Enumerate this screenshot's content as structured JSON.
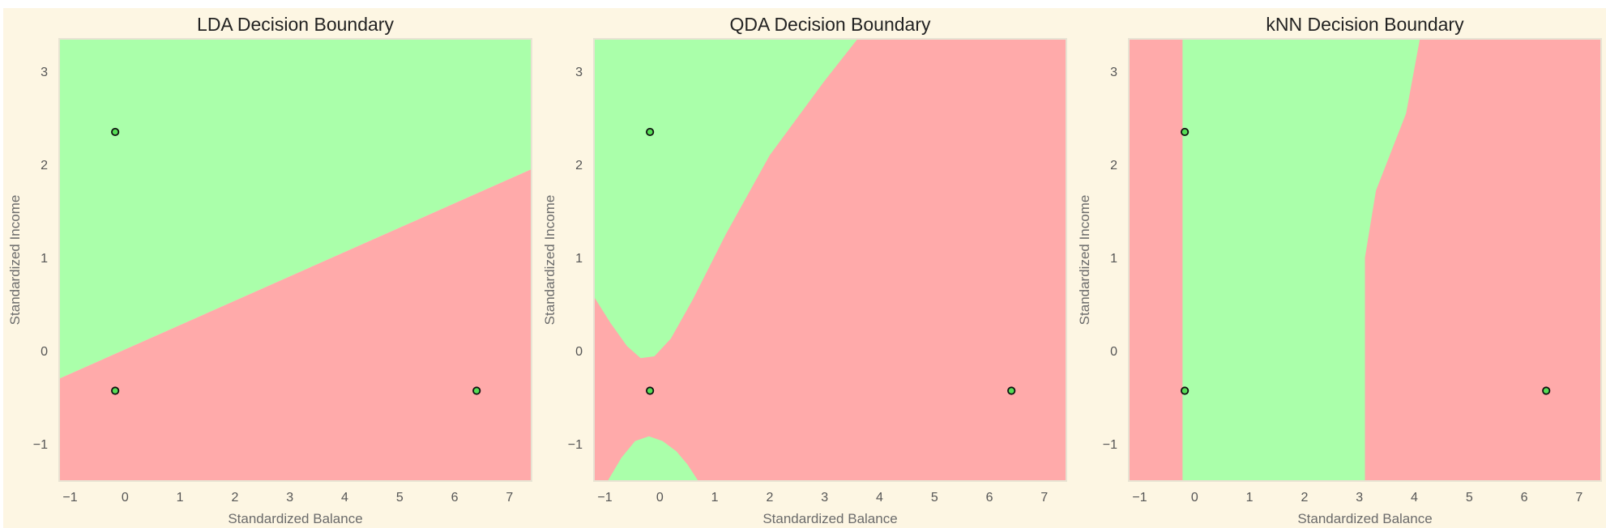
{
  "colors": {
    "figure_background": "#fdf6e3",
    "region_default": "#ffaaaa",
    "region_nondefault": "#aaffaa",
    "point_fill": "#55dd55",
    "point_edge": "#111111",
    "frame": "#e8e3d3",
    "text": "#222222"
  },
  "chart_data": [
    {
      "type": "heatmap",
      "title": "LDA Decision Boundary",
      "xlabel": "Standardized Balance",
      "ylabel": "Standardized Income",
      "xlim": [
        -1.2,
        7.4
      ],
      "ylim": [
        -1.4,
        3.35
      ],
      "xticks": [
        "−1",
        "0",
        "1",
        "2",
        "3",
        "4",
        "5",
        "6",
        "7"
      ],
      "xtick_values": [
        -1,
        0,
        1,
        2,
        3,
        4,
        5,
        6,
        7
      ],
      "yticks": [
        "−1",
        "0",
        "1",
        "2",
        "3"
      ],
      "ytick_values": [
        -1,
        0,
        1,
        2,
        3
      ],
      "grid": false,
      "regions": [
        {
          "class": "non-default",
          "color": "#aaffaa",
          "polygon": [
            [
              -1.2,
              -0.3
            ],
            [
              7.4,
              1.95
            ],
            [
              7.4,
              3.35
            ],
            [
              -1.2,
              3.35
            ]
          ]
        },
        {
          "class": "default",
          "color": "#ffaaaa",
          "polygon": [
            [
              -1.2,
              -1.4
            ],
            [
              7.4,
              -1.4
            ],
            [
              7.4,
              1.95
            ],
            [
              -1.2,
              -0.3
            ]
          ]
        }
      ],
      "points": {
        "x": [
          -0.18,
          -0.18,
          6.4
        ],
        "y": [
          2.35,
          -0.43,
          -0.43
        ]
      }
    },
    {
      "type": "heatmap",
      "title": "QDA Decision Boundary",
      "xlabel": "Standardized Balance",
      "ylabel": "Standardized Income",
      "xlim": [
        -1.2,
        7.4
      ],
      "ylim": [
        -1.4,
        3.35
      ],
      "xticks": [
        "−1",
        "0",
        "1",
        "2",
        "3",
        "4",
        "5",
        "6",
        "7"
      ],
      "xtick_values": [
        -1,
        0,
        1,
        2,
        3,
        4,
        5,
        6,
        7
      ],
      "yticks": [
        "−1",
        "0",
        "1",
        "2",
        "3"
      ],
      "ytick_values": [
        -1,
        0,
        1,
        2,
        3
      ],
      "grid": false,
      "regions": [
        {
          "class": "default",
          "color": "#ffaaaa",
          "polygon": [
            [
              -1.2,
              -1.4
            ],
            [
              7.4,
              -1.4
            ],
            [
              7.4,
              3.35
            ],
            [
              -1.2,
              3.35
            ]
          ]
        },
        {
          "class": "non-default",
          "color": "#aaffaa",
          "polygon": [
            [
              -1.2,
              3.35
            ],
            [
              -1.2,
              0.58
            ],
            [
              -0.9,
              0.3
            ],
            [
              -0.6,
              0.05
            ],
            [
              -0.35,
              -0.08
            ],
            [
              -0.1,
              -0.06
            ],
            [
              0.2,
              0.13
            ],
            [
              0.6,
              0.55
            ],
            [
              1.2,
              1.25
            ],
            [
              2.0,
              2.1
            ],
            [
              3.0,
              2.9
            ],
            [
              3.6,
              3.35
            ]
          ]
        },
        {
          "class": "non-default",
          "color": "#aaffaa",
          "polygon": [
            [
              -0.95,
              -1.4
            ],
            [
              -0.7,
              -1.15
            ],
            [
              -0.45,
              -0.97
            ],
            [
              -0.2,
              -0.92
            ],
            [
              0.05,
              -0.97
            ],
            [
              0.3,
              -1.08
            ],
            [
              0.5,
              -1.22
            ],
            [
              0.7,
              -1.4
            ]
          ]
        }
      ],
      "points": {
        "x": [
          -0.18,
          -0.18,
          6.4
        ],
        "y": [
          2.35,
          -0.43,
          -0.43
        ]
      }
    },
    {
      "type": "heatmap",
      "title": "kNN Decision Boundary",
      "xlabel": "Standardized Balance",
      "ylabel": "Standardized Income",
      "xlim": [
        -1.2,
        7.4
      ],
      "ylim": [
        -1.4,
        3.35
      ],
      "xticks": [
        "−1",
        "0",
        "1",
        "2",
        "3",
        "4",
        "5",
        "6",
        "7"
      ],
      "xtick_values": [
        -1,
        0,
        1,
        2,
        3,
        4,
        5,
        6,
        7
      ],
      "yticks": [
        "−1",
        "0",
        "1",
        "2",
        "3"
      ],
      "ytick_values": [
        -1,
        0,
        1,
        2,
        3
      ],
      "grid": false,
      "regions": [
        {
          "class": "default",
          "color": "#ffaaaa",
          "polygon": [
            [
              -1.2,
              -1.4
            ],
            [
              7.4,
              -1.4
            ],
            [
              7.4,
              3.35
            ],
            [
              -1.2,
              3.35
            ]
          ]
        },
        {
          "class": "non-default",
          "color": "#aaffaa",
          "polygon": [
            [
              -0.22,
              -1.4
            ],
            [
              3.1,
              -1.4
            ],
            [
              3.1,
              1.0
            ],
            [
              3.3,
              1.72
            ],
            [
              3.85,
              2.55
            ],
            [
              4.1,
              3.35
            ],
            [
              -0.22,
              3.35
            ]
          ]
        }
      ],
      "points": {
        "x": [
          -0.18,
          -0.18,
          6.4
        ],
        "y": [
          2.35,
          -0.43,
          -0.43
        ]
      }
    }
  ]
}
